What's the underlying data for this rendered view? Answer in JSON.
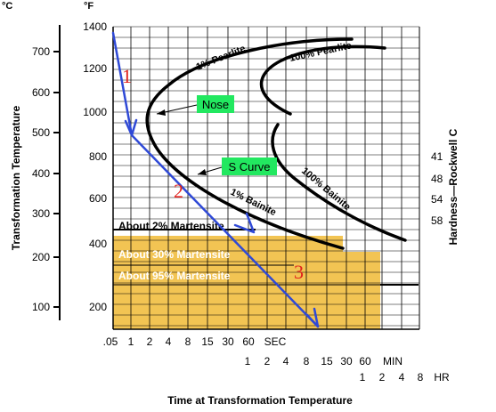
{
  "chart_data": {
    "type": "line",
    "title": "",
    "xlabel": "Time at Transformation Temperature",
    "ylabel_left": "Transformation Temperature",
    "ylabel_right": "Hardness—Rockwell C",
    "units": {
      "celsius": "°C",
      "fahrenheit": "°F"
    },
    "x_scale": "log",
    "x_ticks_seconds": [
      ".05",
      "1",
      "2",
      "4",
      "8",
      "15",
      "30",
      "60",
      "SEC"
    ],
    "x_ticks_minutes": [
      "1",
      "2",
      "4",
      "8",
      "15",
      "30",
      "60",
      "MIN"
    ],
    "x_ticks_hours": [
      "1",
      "2",
      "4",
      "8",
      "HR"
    ],
    "y_ticks_fahrenheit": [
      "1400",
      "1200",
      "1000",
      "800",
      "600",
      "400",
      "200"
    ],
    "y_ticks_celsius": [
      "700",
      "600",
      "500",
      "400",
      "300",
      "200",
      "100"
    ],
    "hardness_ticks": [
      "41",
      "48",
      "54",
      "58"
    ],
    "ylim_fahrenheit": [
      0,
      1400
    ],
    "curve_labels": {
      "pearlite_start": "1% Pearlite",
      "pearlite_finish": "100% Pearlite",
      "bainite_start": "1% Bainite",
      "bainite_finish": "100% Bainite"
    },
    "martensite_labels": [
      "About 2% Martensite",
      "About 30% Martensite",
      "About 95% Martensite"
    ],
    "callouts": {
      "nose": "Nose",
      "s_curve": "S Curve"
    },
    "steps": [
      "1",
      "2",
      "3"
    ],
    "colors": {
      "martensite_fill": "#f2c453",
      "cooling_path": "#2f49d6",
      "step_labels": "#e0201c",
      "callout_bg": "#22e860",
      "curves": "#000000"
    }
  }
}
